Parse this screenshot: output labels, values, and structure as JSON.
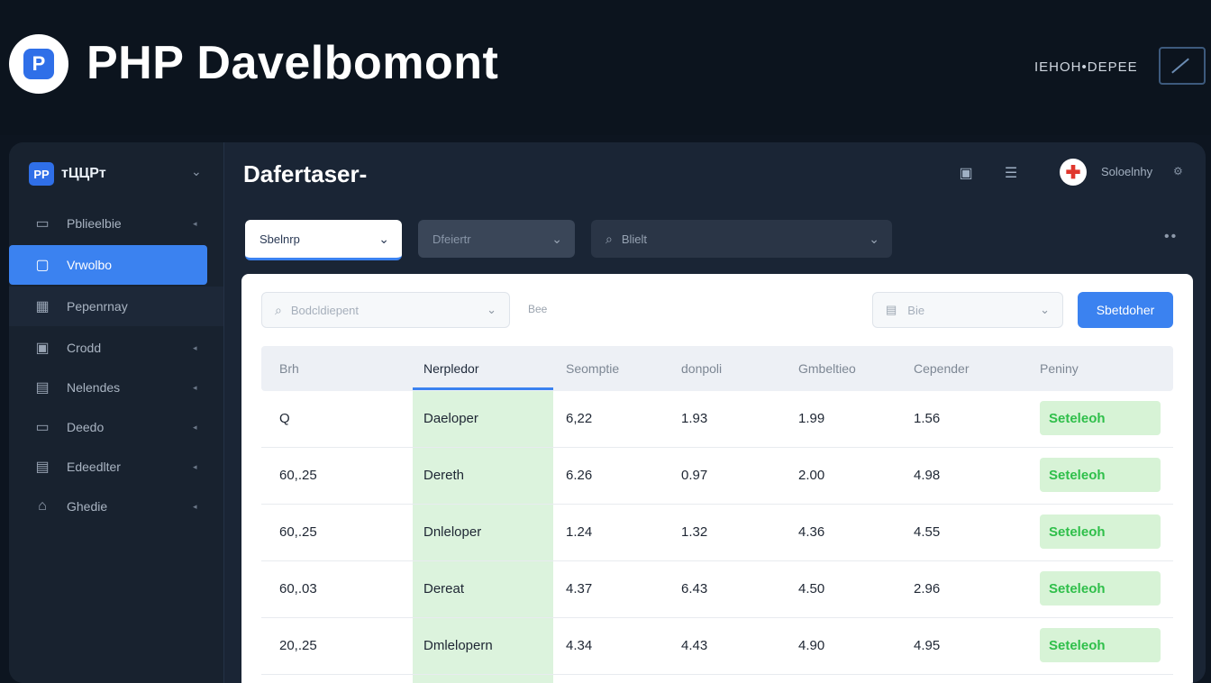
{
  "brand": {
    "logo_text": "P",
    "title": "PHP Davelbomont",
    "top_right_text": "IEHOH•DEPEE"
  },
  "sidebar": {
    "logo_text": "PP",
    "app_name": "тЦЦPт",
    "items": [
      {
        "label": "Pblieelbie",
        "icon": "monitor-icon"
      },
      {
        "label": "Vrwolbo",
        "icon": "tv-icon"
      },
      {
        "label": "Pepenrnay",
        "icon": "grid-icon"
      },
      {
        "label": "Crodd",
        "icon": "briefcase-icon"
      },
      {
        "label": "Nelendes",
        "icon": "calendar-icon"
      },
      {
        "label": "Deedo",
        "icon": "display-icon"
      },
      {
        "label": "Edeedlter",
        "icon": "document-icon"
      },
      {
        "label": "Ghedie",
        "icon": "home-icon"
      }
    ]
  },
  "header": {
    "title": "Dafertaser-",
    "user_name": "Soloelnhy"
  },
  "filters": {
    "f1": "Sbelnrp",
    "f2": "Dfeiertr",
    "f3": "Blielt"
  },
  "panel": {
    "search_placeholder": "Bodcldiepent",
    "mini_label": "Bee",
    "date_placeholder": "Bie",
    "button_label": "Sbetdoher"
  },
  "table": {
    "headers": [
      "Brh",
      "Nerpledor",
      "Seomptie",
      "donpoli",
      "Gmbeltieo",
      "Cepender",
      "Peniny"
    ],
    "rows": [
      [
        "Q",
        "Daeloper",
        "6,22",
        "1.93",
        "1.99",
        "1.56",
        "Seteleoh"
      ],
      [
        "60,.25",
        "Dereth",
        "6.26",
        "0.97",
        "2.00",
        "4.98",
        "Seteleoh"
      ],
      [
        "60,.25",
        "Dnleloper",
        "1.24",
        "1.32",
        "4.36",
        "4.55",
        "Seteleoh"
      ],
      [
        "60,.03",
        "Dereat",
        "4.37",
        "6.43",
        "4.50",
        "2.96",
        "Seteleoh"
      ],
      [
        "20,.25",
        "Dmlelopern",
        "4.34",
        "4.43",
        "4.90",
        "4.95",
        "Seteleoh"
      ]
    ]
  }
}
